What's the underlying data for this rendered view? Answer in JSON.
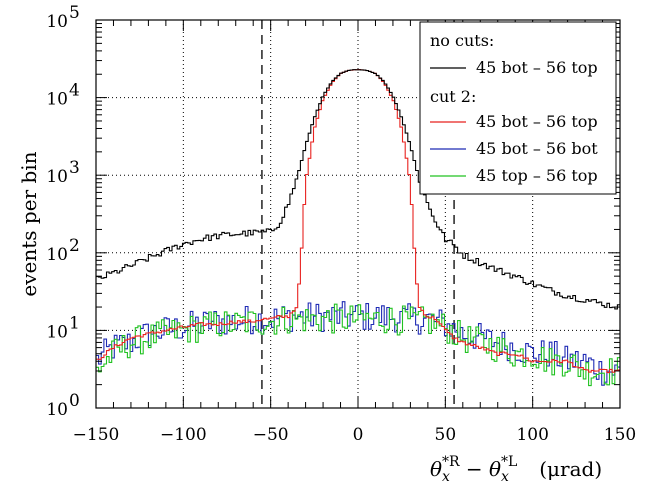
{
  "chart_data": {
    "type": "line",
    "title": "",
    "xlabel": {
      "theta": "θ",
      "sub": "x",
      "sup_right": "*R",
      "minus": " − ",
      "sup_left": "*L",
      "unit": "(μrad)"
    },
    "ylabel": "events per bin",
    "xlim": [
      -150,
      150
    ],
    "ylim": [
      1,
      100000
    ],
    "yscale": "log",
    "grid": true,
    "x_ticks": [
      "−150",
      "−100",
      "−50",
      "0",
      "50",
      "100",
      "150"
    ],
    "x_tick_values": [
      -150,
      -100,
      -50,
      0,
      50,
      100,
      150
    ],
    "y_ticks": [
      {
        "base": "10",
        "exp": "0"
      },
      {
        "base": "10",
        "exp": "1"
      },
      {
        "base": "10",
        "exp": "2"
      },
      {
        "base": "10",
        "exp": "3"
      },
      {
        "base": "10",
        "exp": "4"
      },
      {
        "base": "10",
        "exp": "5"
      }
    ],
    "y_tick_values": [
      1,
      10,
      100,
      1000,
      10000,
      100000
    ],
    "cut_lines_x": [
      -55,
      55
    ],
    "legend": {
      "position": "top-right",
      "group1_header": "no cuts:",
      "group2_header": "cut 2:"
    },
    "series": [
      {
        "name": "45 bot – 56 top",
        "group": "no cuts",
        "color": "#000000",
        "x": [
          -150,
          -140,
          -130,
          -120,
          -110,
          -100,
          -90,
          -80,
          -70,
          -60,
          -55,
          -50,
          -45,
          -40,
          -35,
          -30,
          -25,
          -20,
          -15,
          -10,
          -5,
          0,
          5,
          10,
          15,
          20,
          25,
          30,
          35,
          40,
          45,
          50,
          55,
          60,
          70,
          80,
          90,
          100,
          110,
          120,
          130,
          140,
          150
        ],
        "y": [
          45,
          55,
          68,
          85,
          105,
          130,
          150,
          165,
          175,
          180,
          185,
          185,
          240,
          420,
          900,
          2400,
          5500,
          10500,
          16000,
          20500,
          22500,
          23000,
          22500,
          20500,
          16000,
          10500,
          5500,
          2400,
          900,
          420,
          240,
          150,
          125,
          95,
          75,
          60,
          50,
          40,
          33,
          28,
          25,
          22,
          20
        ]
      },
      {
        "name": "45 bot – 56 top",
        "group": "cut 2",
        "color": "#e8221f",
        "x": [
          -150,
          -140,
          -130,
          -120,
          -110,
          -100,
          -90,
          -80,
          -70,
          -60,
          -55,
          -50,
          -45,
          -40,
          -35,
          -33,
          -30,
          -25,
          -20,
          -15,
          -10,
          -5,
          0,
          5,
          10,
          15,
          20,
          25,
          30,
          33,
          35,
          40,
          45,
          50,
          55,
          60,
          70,
          80,
          90,
          100,
          110,
          120,
          130,
          140,
          150
        ],
        "y": [
          4,
          6,
          8,
          9,
          10,
          11,
          12,
          12,
          13,
          13,
          14,
          14,
          15,
          15,
          20,
          60,
          800,
          4000,
          9500,
          15500,
          20500,
          22500,
          23000,
          22500,
          20500,
          15500,
          9500,
          4000,
          800,
          60,
          20,
          15,
          14,
          10,
          8,
          7,
          6,
          5,
          5,
          4,
          4,
          4,
          3,
          3,
          3
        ]
      },
      {
        "name": "45 bot – 56 bot",
        "group": "cut 2",
        "color": "#1f2bb5",
        "x": [
          -150,
          -140,
          -130,
          -120,
          -110,
          -100,
          -90,
          -80,
          -70,
          -60,
          -50,
          -40,
          -30,
          -20,
          -10,
          0,
          10,
          20,
          30,
          40,
          50,
          60,
          70,
          80,
          90,
          100,
          110,
          120,
          130,
          140,
          150
        ],
        "y": [
          4,
          6,
          7,
          9,
          10,
          11,
          12,
          13,
          13,
          14,
          14,
          15,
          15,
          15,
          15,
          15,
          15,
          15,
          14,
          14,
          12,
          9,
          8,
          7,
          6,
          5,
          5,
          4,
          4,
          3,
          3
        ]
      },
      {
        "name": "45 top – 56 top",
        "group": "cut 2",
        "color": "#21c221",
        "x": [
          -150,
          -140,
          -130,
          -120,
          -110,
          -100,
          -90,
          -80,
          -70,
          -60,
          -50,
          -40,
          -30,
          -20,
          -10,
          0,
          10,
          20,
          30,
          40,
          50,
          60,
          70,
          80,
          90,
          100,
          110,
          120,
          130,
          140,
          150
        ],
        "y": [
          3,
          5,
          7,
          8,
          9,
          10,
          11,
          12,
          12,
          13,
          13,
          14,
          14,
          14,
          14,
          14,
          14,
          14,
          13,
          13,
          11,
          8,
          7,
          6,
          5,
          5,
          4,
          4,
          3,
          3,
          3
        ]
      }
    ]
  }
}
